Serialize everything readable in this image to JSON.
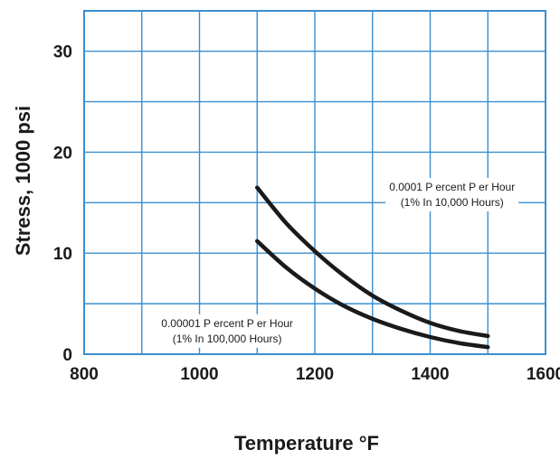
{
  "chart_data": {
    "type": "line",
    "xlabel": "Temperature °F",
    "ylabel": "Stress, 1000 psi",
    "xlim": [
      800,
      1600
    ],
    "ylim": [
      0,
      34
    ],
    "x_ticks": [
      800,
      1000,
      1200,
      1400,
      1600
    ],
    "y_ticks": [
      0,
      10,
      20,
      30
    ],
    "grid": true,
    "series": [
      {
        "x": [
          1100,
          1150,
          1200,
          1250,
          1300,
          1350,
          1400,
          1450,
          1500
        ],
        "y": [
          16.5,
          13.0,
          10.2,
          7.8,
          5.8,
          4.3,
          3.1,
          2.3,
          1.8
        ]
      },
      {
        "x": [
          1100,
          1150,
          1200,
          1250,
          1300,
          1350,
          1400,
          1450,
          1500
        ],
        "y": [
          11.2,
          8.6,
          6.5,
          4.8,
          3.5,
          2.5,
          1.7,
          1.1,
          0.7
        ]
      }
    ],
    "annotations": [
      {
        "line1": "0.0001 P ercent P er Hour",
        "line2": "(1% In 10,000 Hours)",
        "x": 1438,
        "y": 16.2
      },
      {
        "line1": "0.00001 P ercent P er Hour",
        "line2": "(1% In 100,000 Hours)",
        "x": 1048,
        "y": 2.7
      }
    ]
  },
  "colors": {
    "grid": "#3a8fd0",
    "curve": "#1a1a1a",
    "text": "#1a1a1a"
  }
}
